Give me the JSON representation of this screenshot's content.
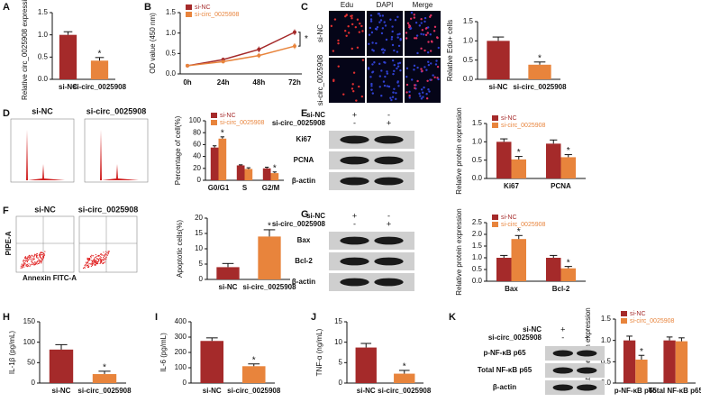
{
  "chart_data": [
    {
      "type": "bar",
      "panel": "A",
      "ylabel": "Relative circ_0025908 expression",
      "categories": [
        "si-NC",
        "si-circ_0025908"
      ],
      "series": [
        {
          "values": [
            1.0,
            0.42
          ],
          "errors": [
            0.07,
            0.07
          ],
          "colors": [
            "#a52a2a",
            "#e8843c"
          ],
          "annotations": [
            null,
            "*"
          ]
        }
      ],
      "ylim": [
        0,
        1.5
      ],
      "yticks": [
        {
          "value": 0,
          "label": "0.0"
        },
        0.5,
        {
          "value": 1,
          "label": "1.0"
        },
        1.5
      ]
    },
    {
      "type": "line",
      "panel": "B",
      "ylabel": "OD value (450 nm)",
      "categories": [
        "0h",
        "24h",
        "48h",
        "72h"
      ],
      "series": [
        {
          "name": "si-NC",
          "color": "#a52a2a",
          "values": [
            0.2,
            0.35,
            0.6,
            1.02
          ],
          "errors": [
            0.03,
            0.05,
            0.07,
            0.07
          ]
        },
        {
          "name": "si-circ_0025908",
          "color": "#e8843c",
          "values": [
            0.2,
            0.3,
            0.45,
            0.68
          ],
          "errors": [
            0.03,
            0.04,
            0.06,
            0.07
          ]
        }
      ],
      "annotation": "*",
      "legend": "upper left",
      "ylim": [
        0,
        1.5
      ],
      "yticks": [
        {
          "value": 0,
          "label": "0.0"
        },
        0.5,
        {
          "value": 1,
          "label": "1.0"
        },
        1.5
      ]
    },
    {
      "type": "bar",
      "ylabel": "Relative Edu+ cells",
      "categories": [
        "si-NC",
        "si-circ_0025908"
      ],
      "series": [
        {
          "values": [
            1.0,
            0.38
          ],
          "errors": [
            0.1,
            0.07
          ],
          "colors": [
            "#a52a2a",
            "#e8843c"
          ],
          "annotations": [
            null,
            "*"
          ]
        }
      ],
      "ylim": [
        0,
        1.5
      ],
      "yticks": [
        {
          "value": 0,
          "label": "0.0"
        },
        0.5,
        {
          "value": 1,
          "label": "1.0"
        },
        1.5
      ]
    },
    {
      "type": "bar",
      "ylabel": "Percentage of cell(%)",
      "categories": [
        "G0/G1",
        "S",
        "G2/M"
      ],
      "legend": "upper left",
      "series": [
        {
          "name": "si-NC",
          "color": "#a52a2a",
          "values": [
            55,
            25,
            20
          ],
          "errors": [
            3,
            1,
            2
          ]
        },
        {
          "name": "si-circ_0025908",
          "color": "#e8843c",
          "values": [
            70,
            19,
            12
          ],
          "errors": [
            3,
            2,
            2
          ],
          "annotations": [
            "*",
            null,
            "*"
          ]
        }
      ],
      "ylim": [
        0,
        100
      ],
      "yticks": [
        0,
        20,
        40,
        60,
        80,
        100
      ]
    },
    {
      "type": "bar",
      "ylabel": "Relative protein expression",
      "categories": [
        "Ki67",
        "PCNA"
      ],
      "legend": "upper left",
      "series": [
        {
          "name": "si-NC",
          "color": "#a52a2a",
          "values": [
            1.0,
            0.95
          ],
          "errors": [
            0.08,
            0.1
          ]
        },
        {
          "name": "si-circ_0025908",
          "color": "#e8843c",
          "values": [
            0.52,
            0.58
          ],
          "errors": [
            0.08,
            0.07
          ],
          "annotations": [
            "*",
            "*"
          ]
        }
      ],
      "ylim": [
        0,
        1.5
      ],
      "yticks": [
        {
          "value": 0,
          "label": "0.0"
        },
        0.5,
        {
          "value": 1,
          "label": "1.0"
        },
        1.5
      ]
    },
    {
      "type": "bar",
      "ylabel": "Apoptotic cells(%)",
      "categories": [
        "si-NC",
        "si-circ_0025908"
      ],
      "series": [
        {
          "values": [
            4,
            14
          ],
          "errors": [
            1.2,
            2.2
          ],
          "colors": [
            "#a52a2a",
            "#e8843c"
          ],
          "annotations": [
            null,
            "*"
          ]
        }
      ],
      "ylim": [
        0,
        20
      ],
      "yticks": [
        0,
        5,
        10,
        15,
        20
      ]
    },
    {
      "type": "bar",
      "ylabel": "Relative protein expression",
      "categories": [
        "Bax",
        "Bcl-2"
      ],
      "legend": "upper left",
      "series": [
        {
          "name": "si-NC",
          "color": "#a52a2a",
          "values": [
            1.0,
            1.0
          ],
          "errors": [
            0.1,
            0.1
          ]
        },
        {
          "name": "si-circ_0025908",
          "color": "#e8843c",
          "values": [
            1.8,
            0.55
          ],
          "errors": [
            0.15,
            0.08
          ],
          "annotations": [
            "*",
            "*"
          ]
        }
      ],
      "ylim": [
        0,
        2.5
      ],
      "yticks": [
        {
          "value": 0,
          "label": "0.0"
        },
        0.5,
        {
          "value": 1,
          "label": "1.0"
        },
        1.5,
        {
          "value": 2,
          "label": "2.0"
        },
        2.5
      ]
    },
    {
      "type": "bar",
      "panel": "H",
      "ylabel": "IL-1β (pg/mL)",
      "categories": [
        "si-NC",
        "si-circ_0025908"
      ],
      "series": [
        {
          "values": [
            82,
            22
          ],
          "errors": [
            12,
            7
          ],
          "colors": [
            "#a52a2a",
            "#e8843c"
          ],
          "annotations": [
            null,
            "*"
          ]
        }
      ],
      "ylim": [
        0,
        150
      ],
      "yticks": [
        0,
        50,
        100,
        150
      ]
    },
    {
      "type": "bar",
      "panel": "I",
      "ylabel": "IL-6 (pg/mL)",
      "categories": [
        "si-NC",
        "si-circ_0025908"
      ],
      "series": [
        {
          "values": [
            275,
            110
          ],
          "errors": [
            20,
            15
          ],
          "colors": [
            "#a52a2a",
            "#e8843c"
          ],
          "annotations": [
            null,
            "*"
          ]
        }
      ],
      "ylim": [
        0,
        400
      ],
      "yticks": [
        0,
        100,
        200,
        300,
        400
      ]
    },
    {
      "type": "bar",
      "panel": "J",
      "ylabel": "TNF-α (ng/mL)",
      "categories": [
        "si-NC",
        "si-circ_0025908"
      ],
      "series": [
        {
          "values": [
            8.7,
            2.3
          ],
          "errors": [
            1.0,
            0.8
          ],
          "colors": [
            "#a52a2a",
            "#e8843c"
          ],
          "annotations": [
            null,
            "*"
          ]
        }
      ],
      "ylim": [
        0,
        15
      ],
      "yticks": [
        0,
        5,
        10,
        15
      ]
    },
    {
      "type": "bar",
      "ylabel": "Relative protein expression",
      "categories": [
        "p-NF-κB p65",
        "Total NF-κB p65"
      ],
      "legend": "upper left",
      "series": [
        {
          "name": "si-NC",
          "color": "#a52a2a",
          "values": [
            1.0,
            1.0
          ],
          "errors": [
            0.1,
            0.08
          ]
        },
        {
          "name": "si-circ_0025908",
          "color": "#e8843c",
          "values": [
            0.55,
            0.98
          ],
          "errors": [
            0.1,
            0.08
          ],
          "annotations": [
            "*",
            null
          ]
        }
      ],
      "ylim": [
        0,
        1.5
      ],
      "yticks": [
        {
          "value": 0,
          "label": "0.0"
        },
        0.5,
        {
          "value": 1,
          "label": "1.0"
        },
        1.5
      ]
    }
  ],
  "figures": {
    "C": {
      "panel": "C",
      "columns": [
        "Edu",
        "DAPI",
        "Merge"
      ],
      "rows": [
        "si-NC",
        "si-circ_0025908"
      ]
    },
    "D": {
      "panel": "D",
      "titles": [
        "si-NC",
        "si-circ_0025908"
      ]
    },
    "E": {
      "panel": "E",
      "groups": [
        "si-NC",
        "si-circ_0025908"
      ],
      "signs": [
        [
          "+",
          "-"
        ],
        [
          "-",
          "+"
        ]
      ],
      "rows": [
        "Ki67",
        "PCNA",
        "β-actin"
      ]
    },
    "F": {
      "panel": "F",
      "titles": [
        "si-NC",
        "si-circ_0025908"
      ],
      "xlabel": "Annexin FITC-A",
      "ylabel": "PIPE-A"
    },
    "G": {
      "panel": "G",
      "groups": [
        "si-NC",
        "si-circ_0025908"
      ],
      "signs": [
        [
          "+",
          "-"
        ],
        [
          "-",
          "+"
        ]
      ],
      "rows": [
        "Bax",
        "Bcl-2",
        "β-actin"
      ]
    },
    "K": {
      "panel": "K",
      "groups": [
        "si-NC",
        "si-circ_0025908"
      ],
      "signs": [
        [
          "+",
          "-"
        ],
        [
          "-",
          "+"
        ]
      ],
      "rows": [
        "p-NF-κB p65",
        "Total NF-κB p65",
        "β-actin"
      ]
    }
  }
}
